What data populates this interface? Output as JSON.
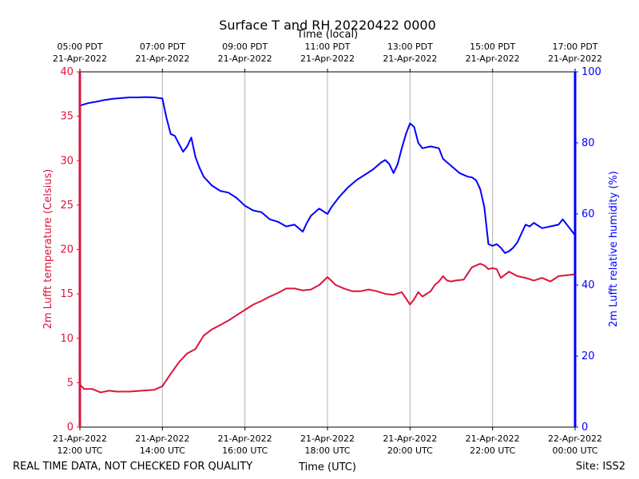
{
  "chart_data": {
    "type": "line",
    "title": "Surface T and RH 20220422 0000",
    "top_axis_label": "Time (local)",
    "xlabel": "Time (UTC)",
    "ylabel_left": "2m Lufft temperature (Celsius)",
    "ylabel_right": "2m Lufft relative humidity (%)",
    "left_axis_color": "#dc143c",
    "right_axis_color": "#0000ff",
    "grid": "vertical at hourly ticks",
    "x_range_hours_utc": [
      12,
      24
    ],
    "ylim_left": [
      0,
      40
    ],
    "ylim_right": [
      0,
      100
    ],
    "left_ticks": [
      "0",
      "5",
      "10",
      "15",
      "20",
      "25",
      "30",
      "35",
      "40"
    ],
    "right_ticks": [
      "0",
      "20",
      "40",
      "60",
      "80",
      "100"
    ],
    "bottom_ticks": [
      {
        "hour": 12,
        "line1": "21-Apr-2022",
        "line2": "12:00 UTC"
      },
      {
        "hour": 14,
        "line1": "21-Apr-2022",
        "line2": "14:00 UTC"
      },
      {
        "hour": 16,
        "line1": "21-Apr-2022",
        "line2": "16:00 UTC"
      },
      {
        "hour": 18,
        "line1": "21-Apr-2022",
        "line2": "18:00 UTC"
      },
      {
        "hour": 20,
        "line1": "21-Apr-2022",
        "line2": "20:00 UTC"
      },
      {
        "hour": 22,
        "line1": "21-Apr-2022",
        "line2": "22:00 UTC"
      },
      {
        "hour": 24,
        "line1": "22-Apr-2022",
        "line2": "00:00 UTC"
      }
    ],
    "top_ticks": [
      {
        "hour": 12,
        "line1": "05:00 PDT",
        "line2": "21-Apr-2022"
      },
      {
        "hour": 14,
        "line1": "07:00 PDT",
        "line2": "21-Apr-2022"
      },
      {
        "hour": 16,
        "line1": "09:00 PDT",
        "line2": "21-Apr-2022"
      },
      {
        "hour": 18,
        "line1": "11:00 PDT",
        "line2": "21-Apr-2022"
      },
      {
        "hour": 20,
        "line1": "13:00 PDT",
        "line2": "21-Apr-2022"
      },
      {
        "hour": 22,
        "line1": "15:00 PDT",
        "line2": "21-Apr-2022"
      },
      {
        "hour": 24,
        "line1": "17:00 PDT",
        "line2": "21-Apr-2022"
      }
    ],
    "series": [
      {
        "axis": "left",
        "color": "#dc143c",
        "x_hours_utc": [
          12.0,
          12.1,
          12.3,
          12.5,
          12.7,
          12.9,
          13.2,
          13.5,
          13.8,
          14.0,
          14.2,
          14.4,
          14.6,
          14.8,
          15.0,
          15.2,
          15.4,
          15.6,
          15.8,
          16.0,
          16.2,
          16.4,
          16.6,
          16.8,
          17.0,
          17.2,
          17.4,
          17.6,
          17.8,
          18.0,
          18.2,
          18.4,
          18.6,
          18.8,
          19.0,
          19.2,
          19.4,
          19.6,
          19.8,
          19.9,
          20.0,
          20.1,
          20.2,
          20.3,
          20.5,
          20.6,
          20.7,
          20.8,
          20.9,
          21.0,
          21.1,
          21.3,
          21.5,
          21.7,
          21.8,
          21.9,
          22.0,
          22.1,
          22.2,
          22.4,
          22.6,
          22.8,
          23.0,
          23.2,
          23.4,
          23.6,
          23.8,
          24.0
        ],
        "y": [
          4.8,
          4.3,
          4.3,
          3.9,
          4.1,
          4.0,
          4.0,
          4.1,
          4.2,
          4.6,
          6.0,
          7.3,
          8.3,
          8.8,
          10.3,
          11.0,
          11.5,
          12.0,
          12.6,
          13.2,
          13.8,
          14.2,
          14.7,
          15.1,
          15.6,
          15.6,
          15.4,
          15.5,
          16.0,
          16.9,
          16.0,
          15.6,
          15.3,
          15.3,
          15.5,
          15.3,
          15.0,
          14.9,
          15.2,
          14.5,
          13.8,
          14.4,
          15.2,
          14.7,
          15.3,
          16.0,
          16.4,
          17.0,
          16.5,
          16.4,
          16.5,
          16.6,
          18.0,
          18.4,
          18.2,
          17.8,
          17.9,
          17.8,
          16.8,
          17.5,
          17.0,
          16.8,
          16.5,
          16.8,
          16.4,
          17.0,
          17.1,
          17.2
        ]
      },
      {
        "axis": "right",
        "color": "#0000ff",
        "x_hours_utc": [
          12.0,
          12.2,
          12.4,
          12.6,
          12.8,
          13.0,
          13.2,
          13.4,
          13.6,
          13.8,
          14.0,
          14.1,
          14.2,
          14.3,
          14.5,
          14.6,
          14.7,
          14.8,
          14.9,
          15.0,
          15.2,
          15.4,
          15.6,
          15.8,
          16.0,
          16.2,
          16.4,
          16.6,
          16.8,
          17.0,
          17.2,
          17.3,
          17.4,
          17.5,
          17.6,
          17.8,
          18.0,
          18.1,
          18.2,
          18.3,
          18.5,
          18.7,
          18.9,
          19.1,
          19.3,
          19.4,
          19.5,
          19.6,
          19.7,
          19.8,
          19.9,
          20.0,
          20.1,
          20.2,
          20.3,
          20.5,
          20.7,
          20.8,
          21.0,
          21.2,
          21.4,
          21.5,
          21.6,
          21.7,
          21.8,
          21.9,
          22.0,
          22.1,
          22.2,
          22.3,
          22.4,
          22.5,
          22.6,
          22.7,
          22.8,
          22.9,
          23.0,
          23.2,
          23.4,
          23.6,
          23.7,
          23.8,
          23.9,
          24.0
        ],
        "y": [
          90.5,
          91.2,
          91.6,
          92.1,
          92.4,
          92.6,
          92.8,
          92.8,
          92.9,
          92.8,
          92.5,
          87.0,
          82.5,
          82.0,
          77.5,
          79.0,
          81.5,
          76.0,
          73.0,
          70.5,
          68.0,
          66.5,
          66.0,
          64.5,
          62.3,
          61.0,
          60.5,
          58.5,
          57.8,
          56.5,
          57.0,
          56.0,
          55.0,
          57.5,
          59.5,
          61.5,
          60.0,
          62.0,
          63.5,
          65.0,
          67.5,
          69.5,
          71.0,
          72.5,
          74.5,
          75.2,
          74.0,
          71.5,
          74.0,
          78.5,
          82.5,
          85.5,
          84.5,
          80.0,
          78.5,
          79.0,
          78.5,
          75.5,
          73.5,
          71.5,
          70.5,
          70.3,
          69.5,
          67.0,
          62.0,
          51.5,
          51.0,
          51.5,
          50.5,
          49.0,
          49.5,
          50.5,
          52.0,
          54.5,
          57.0,
          56.5,
          57.5,
          56.0,
          56.5,
          57.0,
          58.5,
          57.0,
          55.5,
          54.0
        ]
      }
    ]
  },
  "footer": {
    "left_note": "REAL TIME DATA, NOT CHECKED FOR QUALITY",
    "right_note": "Site: ISS2"
  }
}
